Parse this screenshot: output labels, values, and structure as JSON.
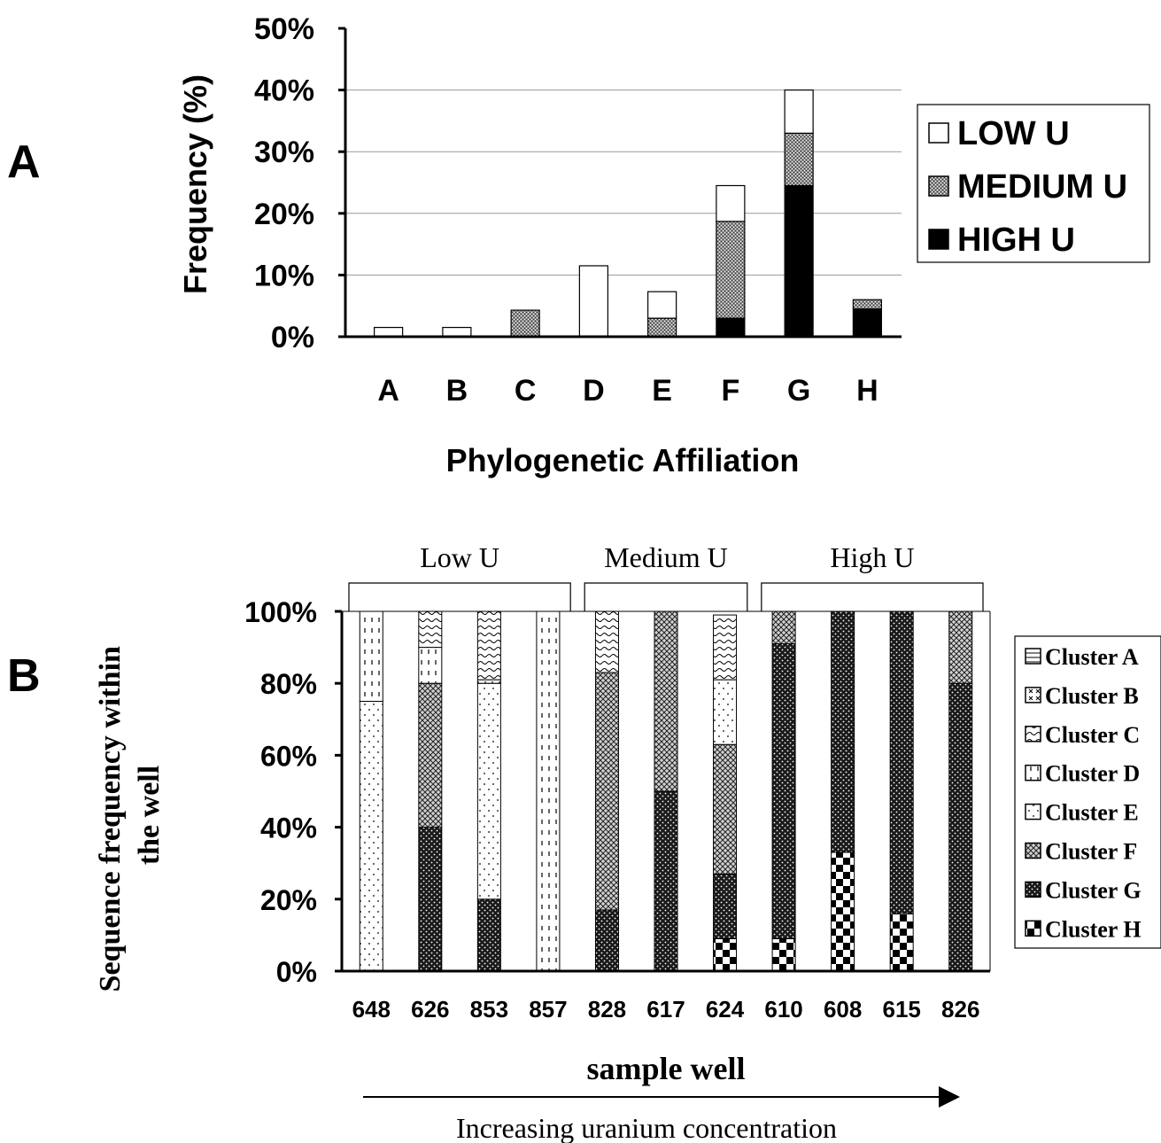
{
  "panels": {
    "a": "A",
    "b": "B"
  },
  "colors": {
    "ink": "#000000",
    "paper": "#ffffff",
    "medium_fill": "#8c8c8c",
    "grid": "#9a9a9a"
  },
  "chart_data": [
    {
      "type": "bar",
      "stacked": true,
      "panel": "A",
      "title": "",
      "xlabel": "Phylogenetic Affiliation",
      "ylabel": "Frequency (%)",
      "ylim": [
        0,
        50
      ],
      "ytick_labels": [
        "0%",
        "10%",
        "20%",
        "30%",
        "40%",
        "50%"
      ],
      "categories": [
        "A",
        "B",
        "C",
        "D",
        "E",
        "F",
        "G",
        "H"
      ],
      "series": [
        {
          "name": "HIGH U",
          "pattern": "solid-black",
          "values": [
            0,
            0,
            0,
            0,
            0,
            3,
            24.5,
            4.5
          ]
        },
        {
          "name": "MEDIUM U",
          "pattern": "gray-stipple",
          "values": [
            0,
            0,
            4.3,
            0,
            3,
            15.7,
            8.5,
            1.5
          ]
        },
        {
          "name": "LOW U",
          "pattern": "white",
          "values": [
            1.5,
            1.5,
            0,
            11.5,
            4.3,
            5.8,
            7,
            0
          ]
        }
      ],
      "legend": {
        "position": "right",
        "entries": [
          "LOW U",
          "MEDIUM U",
          "HIGH U"
        ]
      },
      "grid": "horizontal"
    },
    {
      "type": "bar",
      "stacked": true,
      "percent": true,
      "panel": "B",
      "title": "",
      "xlabel": "sample well",
      "ylabel": "Sequence frequency within the well",
      "ylim": [
        0,
        100
      ],
      "ytick_labels": [
        "0%",
        "20%",
        "40%",
        "60%",
        "80%",
        "100%"
      ],
      "categories": [
        "648",
        "626",
        "853",
        "857",
        "828",
        "617",
        "624",
        "610",
        "608",
        "615",
        "826"
      ],
      "groups": [
        {
          "label": "Low U",
          "members": [
            "648",
            "626",
            "853",
            "857"
          ]
        },
        {
          "label": "Medium U",
          "members": [
            "828",
            "617",
            "624"
          ]
        },
        {
          "label": "High U",
          "members": [
            "610",
            "608",
            "615",
            "826"
          ]
        }
      ],
      "arrow_label": "Increasing uranium concentration",
      "series": [
        {
          "name": "Cluster H",
          "pattern": "checker",
          "values": [
            0,
            0,
            0,
            0,
            0,
            0,
            9,
            9,
            33,
            16,
            0
          ]
        },
        {
          "name": "Cluster G",
          "pattern": "dark-dots",
          "values": [
            0,
            40,
            20,
            0,
            17,
            50,
            18,
            82,
            67,
            84,
            80
          ]
        },
        {
          "name": "Cluster F",
          "pattern": "crosshatch",
          "values": [
            0,
            40,
            0,
            0,
            66,
            50,
            36,
            9,
            0,
            0,
            20
          ]
        },
        {
          "name": "Cluster E",
          "pattern": "sparse-dots",
          "values": [
            75,
            0,
            60,
            0,
            0,
            0,
            18,
            0,
            0,
            0,
            0
          ]
        },
        {
          "name": "Cluster D",
          "pattern": "dashes",
          "values": [
            25,
            10,
            1,
            100,
            0,
            0,
            0,
            0,
            0,
            0,
            0
          ]
        },
        {
          "name": "Cluster C",
          "pattern": "wavy",
          "values": [
            0,
            10,
            19,
            0,
            17,
            0,
            18,
            0,
            0,
            0,
            0
          ]
        },
        {
          "name": "Cluster B",
          "pattern": "x-marks",
          "values": [
            0,
            0,
            0,
            0,
            0,
            0,
            0,
            0,
            0,
            0,
            0
          ]
        },
        {
          "name": "Cluster A",
          "pattern": "hlines",
          "values": [
            0,
            0,
            0,
            0,
            0,
            0,
            0,
            0,
            0,
            0,
            0
          ]
        }
      ],
      "legend": {
        "position": "right",
        "entries": [
          "Cluster A",
          "Cluster B",
          "Cluster C",
          "Cluster D",
          "Cluster E",
          "Cluster F",
          "Cluster G",
          "Cluster H"
        ]
      },
      "grid": "none"
    }
  ]
}
